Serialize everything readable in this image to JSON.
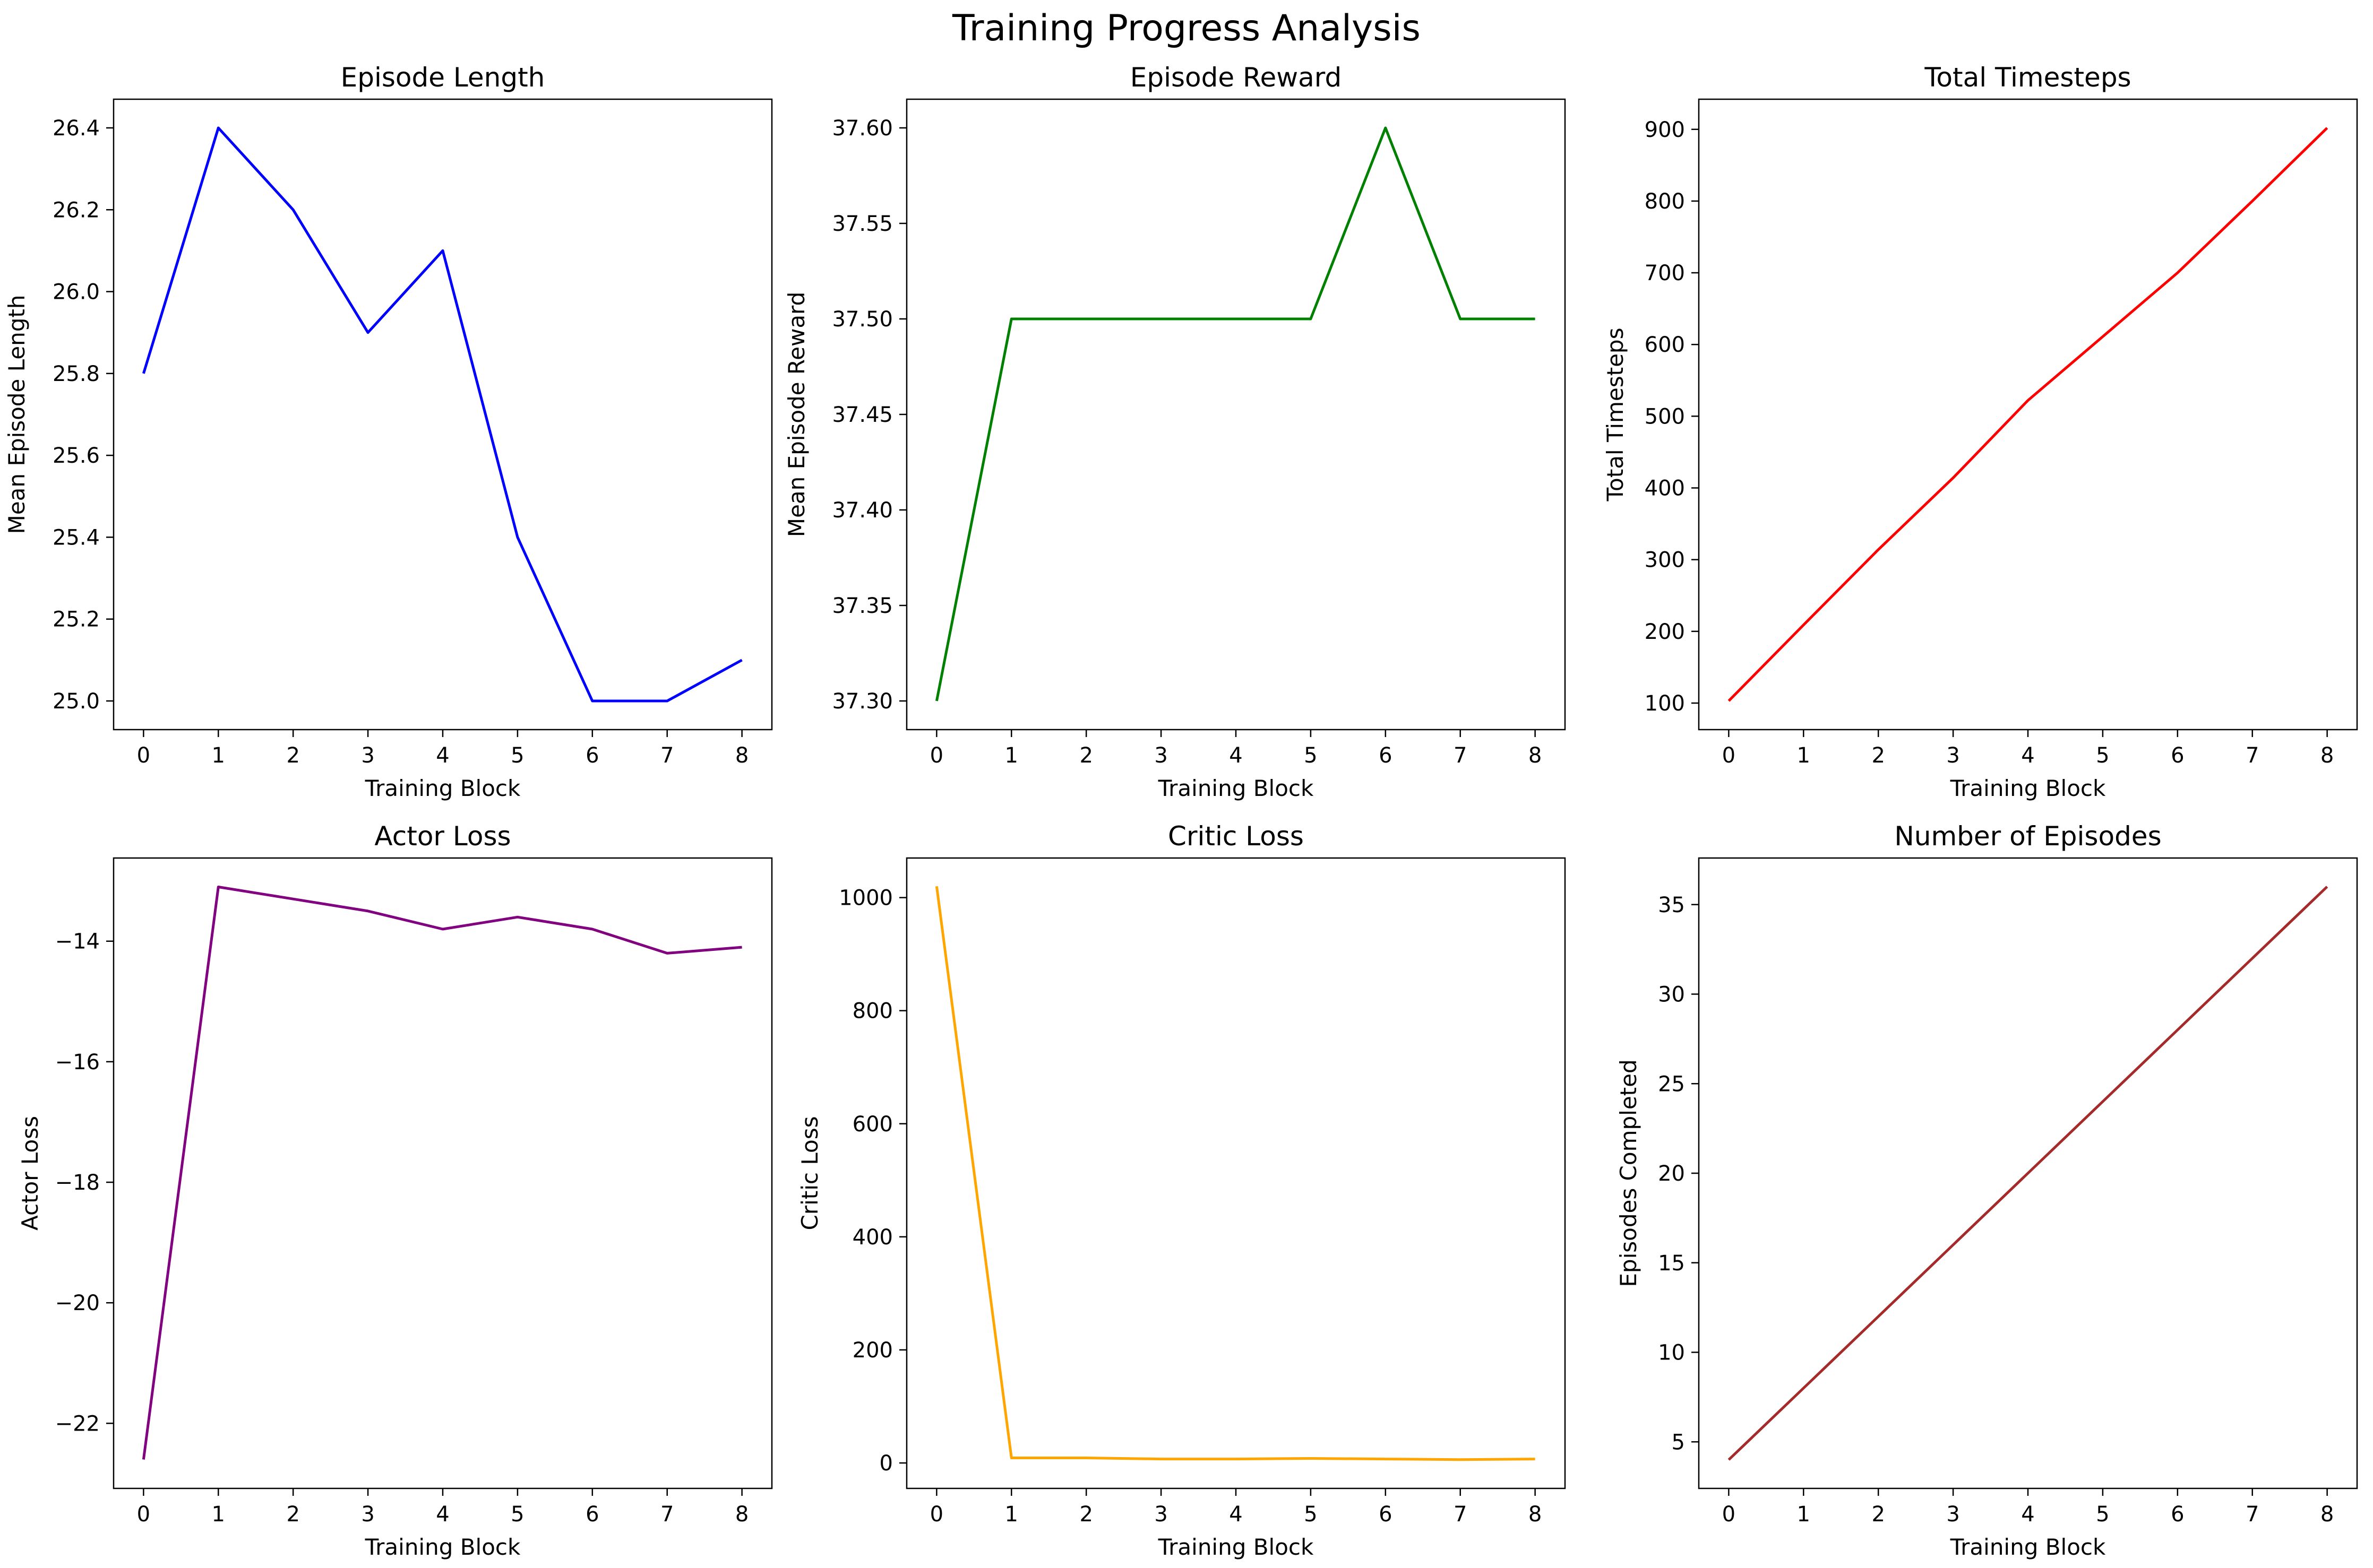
{
  "title": "Training Progress Analysis",
  "chart_data": [
    {
      "type": "line",
      "title": "Episode Length",
      "xlabel": "Training Block",
      "ylabel": "Mean Episode Length",
      "x": [
        0,
        1,
        2,
        3,
        4,
        5,
        6,
        7,
        8
      ],
      "series": [
        {
          "values": [
            25.8,
            26.4,
            26.2,
            25.9,
            26.1,
            25.4,
            25.0,
            25.0,
            25.1
          ],
          "color": "#0000ff"
        }
      ],
      "xlim": [
        -0.4,
        8.4
      ],
      "ylim": [
        24.93,
        26.47
      ],
      "xticks": [
        0,
        1,
        2,
        3,
        4,
        5,
        6,
        7,
        8
      ],
      "yticks": [
        25.0,
        25.2,
        25.4,
        25.6,
        25.8,
        26.0,
        26.2,
        26.4
      ],
      "ytick_labels": [
        "25.0",
        "25.2",
        "25.4",
        "25.6",
        "25.8",
        "26.0",
        "26.2",
        "26.4"
      ]
    },
    {
      "type": "line",
      "title": "Episode Reward",
      "xlabel": "Training Block",
      "ylabel": "Mean Episode Reward",
      "x": [
        0,
        1,
        2,
        3,
        4,
        5,
        6,
        7,
        8
      ],
      "series": [
        {
          "values": [
            37.3,
            37.5,
            37.5,
            37.5,
            37.5,
            37.5,
            37.6,
            37.5,
            37.5
          ],
          "color": "#008000"
        }
      ],
      "xlim": [
        -0.4,
        8.4
      ],
      "ylim": [
        37.285,
        37.615
      ],
      "xticks": [
        0,
        1,
        2,
        3,
        4,
        5,
        6,
        7,
        8
      ],
      "yticks": [
        37.3,
        37.35,
        37.4,
        37.45,
        37.5,
        37.55,
        37.6
      ],
      "ytick_labels": [
        "37.30",
        "37.35",
        "37.40",
        "37.45",
        "37.50",
        "37.55",
        "37.60"
      ]
    },
    {
      "type": "line",
      "title": "Total Timesteps",
      "xlabel": "Training Block",
      "ylabel": "Total Timesteps",
      "x": [
        0,
        1,
        2,
        3,
        4,
        5,
        6,
        7,
        8
      ],
      "series": [
        {
          "values": [
            103,
            209,
            314,
            414,
            522,
            611,
            700,
            800,
            902
          ],
          "color": "#ff0000"
        }
      ],
      "xlim": [
        -0.4,
        8.4
      ],
      "ylim": [
        63,
        942
      ],
      "xticks": [
        0,
        1,
        2,
        3,
        4,
        5,
        6,
        7,
        8
      ],
      "yticks": [
        100,
        200,
        300,
        400,
        500,
        600,
        700,
        800,
        900
      ],
      "ytick_labels": [
        "100",
        "200",
        "300",
        "400",
        "500",
        "600",
        "700",
        "800",
        "900"
      ]
    },
    {
      "type": "line",
      "title": "Actor Loss",
      "xlabel": "Training Block",
      "ylabel": "Actor Loss",
      "x": [
        0,
        1,
        2,
        3,
        4,
        5,
        6,
        7,
        8
      ],
      "series": [
        {
          "values": [
            -22.6,
            -13.1,
            -13.3,
            -13.5,
            -13.8,
            -13.6,
            -13.8,
            -14.2,
            -14.1
          ],
          "color": "#800080"
        }
      ],
      "xlim": [
        -0.4,
        8.4
      ],
      "ylim": [
        -23.08,
        -12.62
      ],
      "xticks": [
        0,
        1,
        2,
        3,
        4,
        5,
        6,
        7,
        8
      ],
      "yticks": [
        -22,
        -20,
        -18,
        -16,
        -14
      ],
      "ytick_labels": [
        "−22",
        "−20",
        "−18",
        "−16",
        "−14"
      ]
    },
    {
      "type": "line",
      "title": "Critic Loss",
      "xlabel": "Training Block",
      "ylabel": "Critic Loss",
      "x": [
        0,
        1,
        2,
        3,
        4,
        5,
        6,
        7,
        8
      ],
      "series": [
        {
          "values": [
            1020,
            9,
            9,
            7,
            7,
            8,
            7,
            6,
            7
          ],
          "color": "#ffa500"
        }
      ],
      "xlim": [
        -0.4,
        8.4
      ],
      "ylim": [
        -45,
        1070
      ],
      "xticks": [
        0,
        1,
        2,
        3,
        4,
        5,
        6,
        7,
        8
      ],
      "yticks": [
        0,
        200,
        400,
        600,
        800,
        1000
      ],
      "ytick_labels": [
        "0",
        "200",
        "400",
        "600",
        "800",
        "1000"
      ]
    },
    {
      "type": "line",
      "title": "Number of Episodes",
      "xlabel": "Training Block",
      "ylabel": "Episodes Completed",
      "x": [
        0,
        1,
        2,
        3,
        4,
        5,
        6,
        7,
        8
      ],
      "series": [
        {
          "values": [
            4,
            8,
            12,
            16,
            20,
            24,
            28,
            32,
            36
          ],
          "color": "#a52a2a"
        }
      ],
      "xlim": [
        -0.4,
        8.4
      ],
      "ylim": [
        2.4,
        37.6
      ],
      "xticks": [
        0,
        1,
        2,
        3,
        4,
        5,
        6,
        7,
        8
      ],
      "yticks": [
        5,
        10,
        15,
        20,
        25,
        30,
        35
      ],
      "ytick_labels": [
        "5",
        "10",
        "15",
        "20",
        "25",
        "30",
        "35"
      ]
    }
  ]
}
